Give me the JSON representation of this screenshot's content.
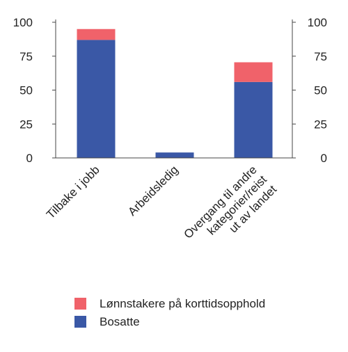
{
  "chart_data": {
    "type": "bar",
    "stacked": true,
    "categories": [
      [
        "Tilbake i jobb"
      ],
      [
        "Arbeidsledig"
      ],
      [
        "Overgang til andre",
        "kategorier/reist",
        "ut av landet"
      ]
    ],
    "series": [
      {
        "name": "Bosatte",
        "color": "#3a58a6",
        "values": [
          87,
          4,
          56
        ]
      },
      {
        "name": "Lønnstakere på korttidsopphold",
        "color": "#f0626a",
        "values": [
          8,
          0,
          14.5
        ]
      }
    ],
    "ylim": [
      0,
      100
    ],
    "yticks": [
      0,
      25,
      50,
      75,
      100
    ],
    "y_axis_left": true,
    "y_axis_right": true,
    "grid": false,
    "legend_position": "bottom"
  }
}
